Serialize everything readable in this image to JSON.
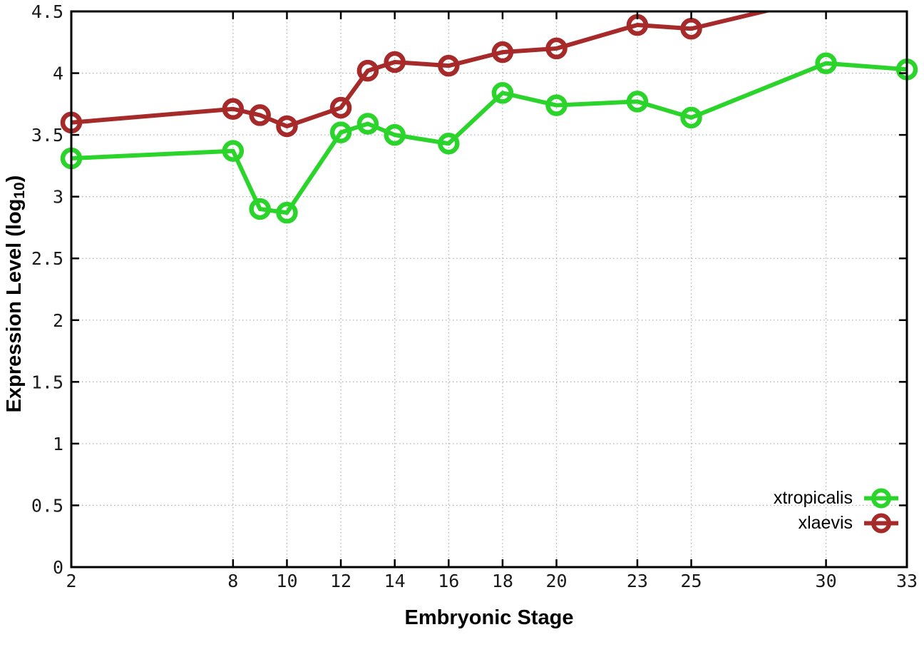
{
  "figure": {
    "xlabel": "Embryonic Stage",
    "ylabel_prefix": "Expression Level (log",
    "ylabel_sub": "10",
    "ylabel_suffix": ")"
  },
  "legend": {
    "entries": [
      {
        "label": "xtropicalis",
        "color": "#2bd42b"
      },
      {
        "label": "xlaevis",
        "color": "#a62a2a"
      }
    ]
  },
  "colors": {
    "axis": "#000000",
    "grid": "#b5b5b5",
    "tick_text": "#1a1a1a",
    "background": "#ffffff"
  },
  "chart_data": {
    "type": "line",
    "title": "",
    "xlabel": "Embryonic Stage",
    "ylabel": "Expression Level (log10)",
    "xlim": [
      2,
      33
    ],
    "ylim": [
      0,
      4.5
    ],
    "xticks": [
      2,
      8,
      10,
      12,
      14,
      16,
      18,
      20,
      23,
      25,
      30,
      33
    ],
    "xtick_labels": [
      "2",
      "8",
      "10",
      "12",
      "14",
      "16",
      "18",
      "20",
      "23",
      "25",
      "30",
      "33"
    ],
    "yticks": [
      0,
      0.5,
      1,
      1.5,
      2,
      2.5,
      3,
      3.5,
      4,
      4.5
    ],
    "ytick_labels": [
      "0",
      "0.5",
      "1",
      "1.5",
      "2",
      "2.5",
      "3",
      "3.5",
      "4",
      "4.5"
    ],
    "grid": true,
    "legend_position": "inside-bottom-right",
    "marker_style": "open-circle",
    "series": [
      {
        "name": "xtropicalis",
        "color": "#2bd42b",
        "x": [
          2,
          8,
          9,
          10,
          12,
          13,
          14,
          16,
          18,
          20,
          23,
          25,
          30,
          33
        ],
        "y": [
          3.31,
          3.37,
          2.9,
          2.87,
          3.52,
          3.59,
          3.5,
          3.43,
          3.84,
          3.74,
          3.77,
          3.64,
          4.08,
          4.03
        ]
      },
      {
        "name": "xlaevis",
        "color": "#a62a2a",
        "x": [
          2,
          8,
          9,
          10,
          12,
          13,
          14,
          16,
          18,
          20,
          23,
          25
        ],
        "y": [
          3.6,
          3.71,
          3.66,
          3.57,
          3.72,
          4.02,
          4.09,
          4.06,
          4.17,
          4.2,
          4.39,
          4.36
        ],
        "offscreen_continuation": {
          "x": 30,
          "y": 4.62,
          "estimated": true,
          "note": "line rises past the top axis (4.5) and is clipped near stage 28"
        }
      }
    ]
  }
}
